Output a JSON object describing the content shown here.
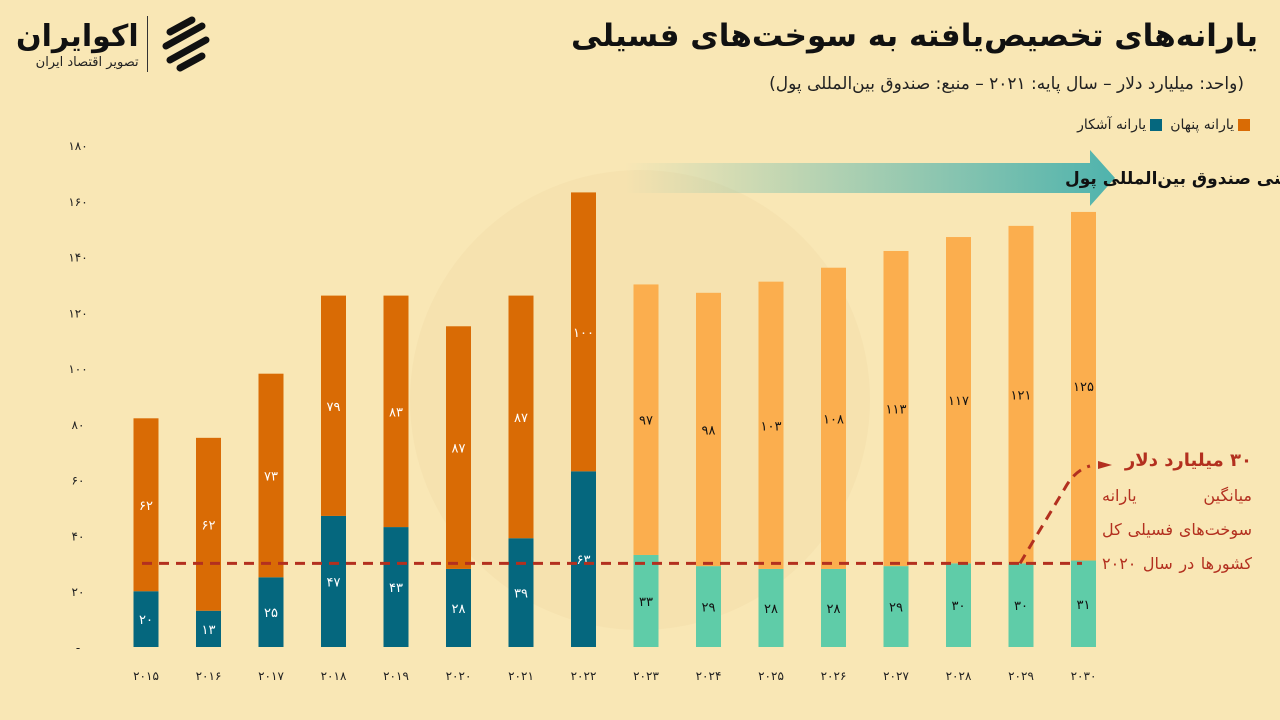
{
  "header": {
    "title": "یارانه‌های تخصیص‌یافته به سوخت‌های فسیلی",
    "subtitle": "(واحد: میلیارد دلار – سال پایه: ۲۰۲۱ – منبع: صندوق بین‌المللی پول)"
  },
  "logo": {
    "name": "اکوایران",
    "tagline": "تصویر اقتصاد ایران"
  },
  "forecast_banner": "پیش‌بینی صندوق بین‌المللی پول",
  "annotation": {
    "headline": "۳۰ میلیارد دلار",
    "body": "میانگین یارانه سوخت‌های فسیلی کل کشورها در سال ۲۰۲۰"
  },
  "colors": {
    "explicit": "#05677e",
    "implicit": "#d96b05",
    "explicit_forecast": "#5fcca8",
    "implicit_forecast": "#fbae4e",
    "annotation": "#b3301f",
    "background": "#f9e7b5"
  },
  "chart_data": {
    "type": "bar",
    "stacked": true,
    "categories": [
      "۲۰۱۵",
      "۲۰۱۶",
      "۲۰۱۷",
      "۲۰۱۸",
      "۲۰۱۹",
      "۲۰۲۰",
      "۲۰۲۱",
      "۲۰۲۲",
      "۲۰۲۳",
      "۲۰۲۴",
      "۲۰۲۵",
      "۲۰۲۶",
      "۲۰۲۷",
      "۲۰۲۸",
      "۲۰۲۹",
      "۲۰۳۰"
    ],
    "series": [
      {
        "name": "یارانه آشکار",
        "values": [
          20,
          13,
          25,
          47,
          43,
          28,
          39,
          63,
          33,
          29,
          28,
          28,
          29,
          30,
          30,
          31
        ]
      },
      {
        "name": "یارانه پنهان",
        "values": [
          62,
          62,
          73,
          79,
          83,
          87,
          87,
          100,
          97,
          98,
          103,
          108,
          113,
          117,
          121,
          125
        ]
      }
    ],
    "forecast_from": "۲۰۲۳",
    "ylim": [
      0,
      180
    ],
    "yticks": [
      "-",
      "۲۰",
      "۴۰",
      "۶۰",
      "۸۰",
      "۱۰۰",
      "۱۲۰",
      "۱۴۰",
      "۱۶۰",
      "۱۸۰"
    ],
    "reference_line": 30,
    "legend_position": "top-right",
    "grid": false
  }
}
